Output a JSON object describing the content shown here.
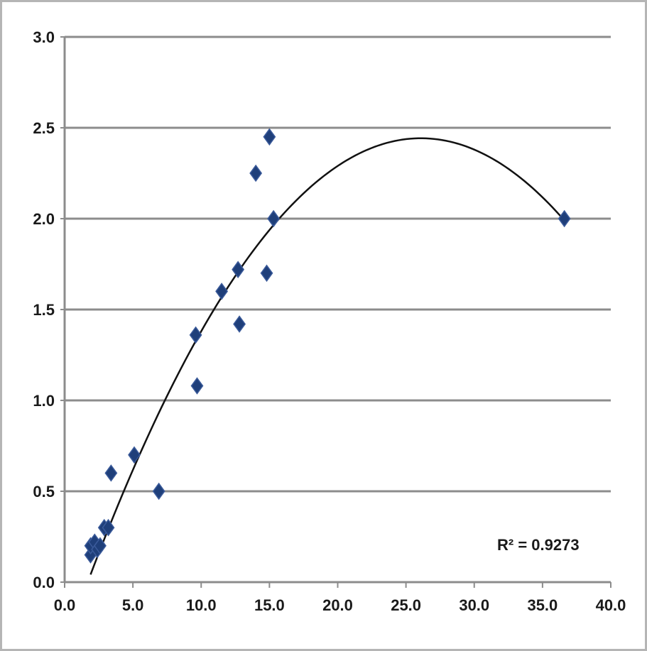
{
  "chart_data": {
    "type": "scatter",
    "title": "",
    "xlabel": "",
    "ylabel": "",
    "xlim": [
      0,
      40
    ],
    "ylim": [
      0,
      3
    ],
    "x_ticks": [
      "0.0",
      "5.0",
      "10.0",
      "15.0",
      "20.0",
      "25.0",
      "30.0",
      "35.0",
      "40.0"
    ],
    "y_ticks": [
      "0.0",
      "0.5",
      "1.0",
      "1.5",
      "2.0",
      "2.5",
      "3.0"
    ],
    "grid": "horizontal",
    "legend": "none",
    "series": [
      {
        "color": "#1f3f7a",
        "marker": "diamond",
        "points": [
          [
            1.9,
            0.15
          ],
          [
            1.9,
            0.2
          ],
          [
            2.2,
            0.22
          ],
          [
            2.4,
            0.18
          ],
          [
            2.6,
            0.2
          ],
          [
            2.9,
            0.3
          ],
          [
            3.2,
            0.3
          ],
          [
            3.4,
            0.6
          ],
          [
            5.1,
            0.7
          ],
          [
            6.9,
            0.5
          ],
          [
            9.6,
            1.36
          ],
          [
            9.7,
            1.08
          ],
          [
            11.5,
            1.6
          ],
          [
            12.7,
            1.72
          ],
          [
            12.8,
            1.42
          ],
          [
            14.0,
            2.25
          ],
          [
            14.8,
            1.7
          ],
          [
            15.0,
            2.45
          ],
          [
            15.3,
            2.0
          ],
          [
            36.6,
            2.0
          ]
        ]
      }
    ],
    "trendline": {
      "type": "polynomial-2",
      "color": "#111111",
      "x_range": [
        1.9,
        36.6
      ],
      "coefficients": [
        -0.35,
        0.214,
        -0.0041
      ],
      "r_squared_label": "R² = 0.9273"
    }
  }
}
